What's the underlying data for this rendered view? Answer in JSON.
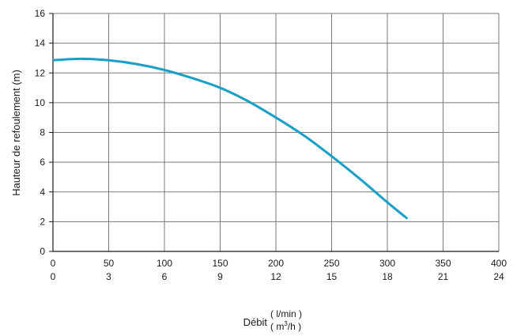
{
  "chart_data": {
    "type": "line",
    "ylabel": "Hauteur de refoulement (m)",
    "xlabel": "Débit",
    "x_unit_primary": "( l/min )",
    "x_unit_secondary_prefix": "( m",
    "x_unit_secondary_sup": "3",
    "x_unit_secondary_suffix": "/h )",
    "xlim": [
      0,
      400
    ],
    "ylim": [
      0,
      16
    ],
    "x_ticks": [
      "0",
      "50",
      "100",
      "150",
      "200",
      "250",
      "300",
      "350",
      "400"
    ],
    "x_ticks_secondary": [
      "0",
      "3",
      "6",
      "9",
      "12",
      "15",
      "18",
      "21",
      "24"
    ],
    "y_ticks": [
      "0",
      "2",
      "4",
      "6",
      "8",
      "10",
      "12",
      "14",
      "16"
    ],
    "grid": true,
    "line_color": "#1aa0c8",
    "series": [
      {
        "x": [
          0,
          25,
          50,
          75,
          100,
          125,
          150,
          175,
          200,
          225,
          250,
          275,
          300,
          318
        ],
        "y": [
          12.85,
          12.95,
          12.85,
          12.6,
          12.2,
          11.65,
          11.0,
          10.1,
          9.0,
          7.8,
          6.4,
          4.9,
          3.3,
          2.2
        ]
      }
    ]
  }
}
